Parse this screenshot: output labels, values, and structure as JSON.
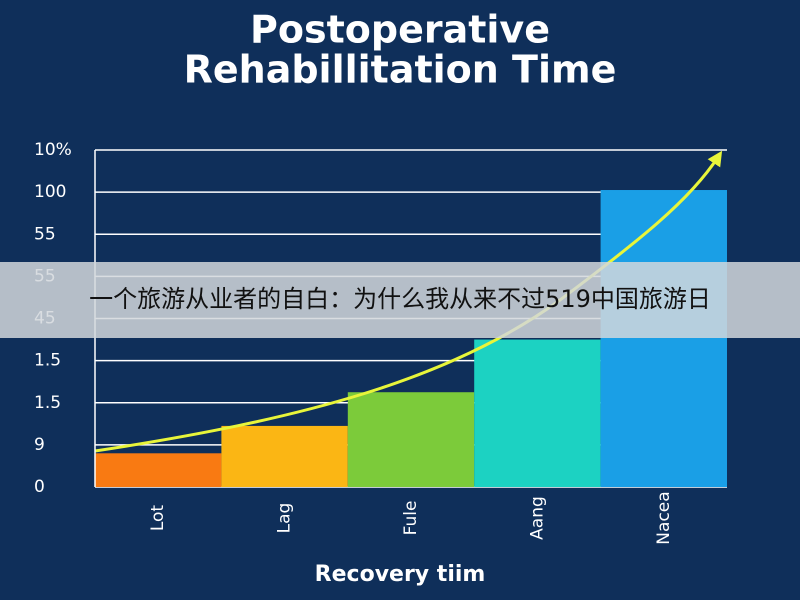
{
  "chart_data": {
    "type": "bar",
    "title": [
      "Postoperative",
      "Rehabillitation Time"
    ],
    "x_label": "Recovery tiim",
    "categories": [
      "Lot",
      "Lag",
      "Fule",
      "Aang",
      "Nacea"
    ],
    "values": [
      0.8,
      1.45,
      2.25,
      3.5,
      7.05
    ],
    "colors": [
      "#f97a12",
      "#fbb614",
      "#7ccb3a",
      "#1cd2c2",
      "#1a9fe6"
    ],
    "ylim": [
      0,
      8
    ],
    "yticks": [
      {
        "value": 0,
        "label": "0"
      },
      {
        "value": 1,
        "label": "9"
      },
      {
        "value": 2,
        "label": "1.5"
      },
      {
        "value": 3,
        "label": "1.5"
      },
      {
        "value": 4,
        "label": "45"
      },
      {
        "value": 5,
        "label": "55"
      },
      {
        "value": 6,
        "label": "55"
      },
      {
        "value": 7,
        "label": "100"
      },
      {
        "value": 8,
        "label": "10%"
      }
    ],
    "grid": true
  },
  "banner": "一个旅游从业者的自白：为什么我从来不过519中国旅游日"
}
